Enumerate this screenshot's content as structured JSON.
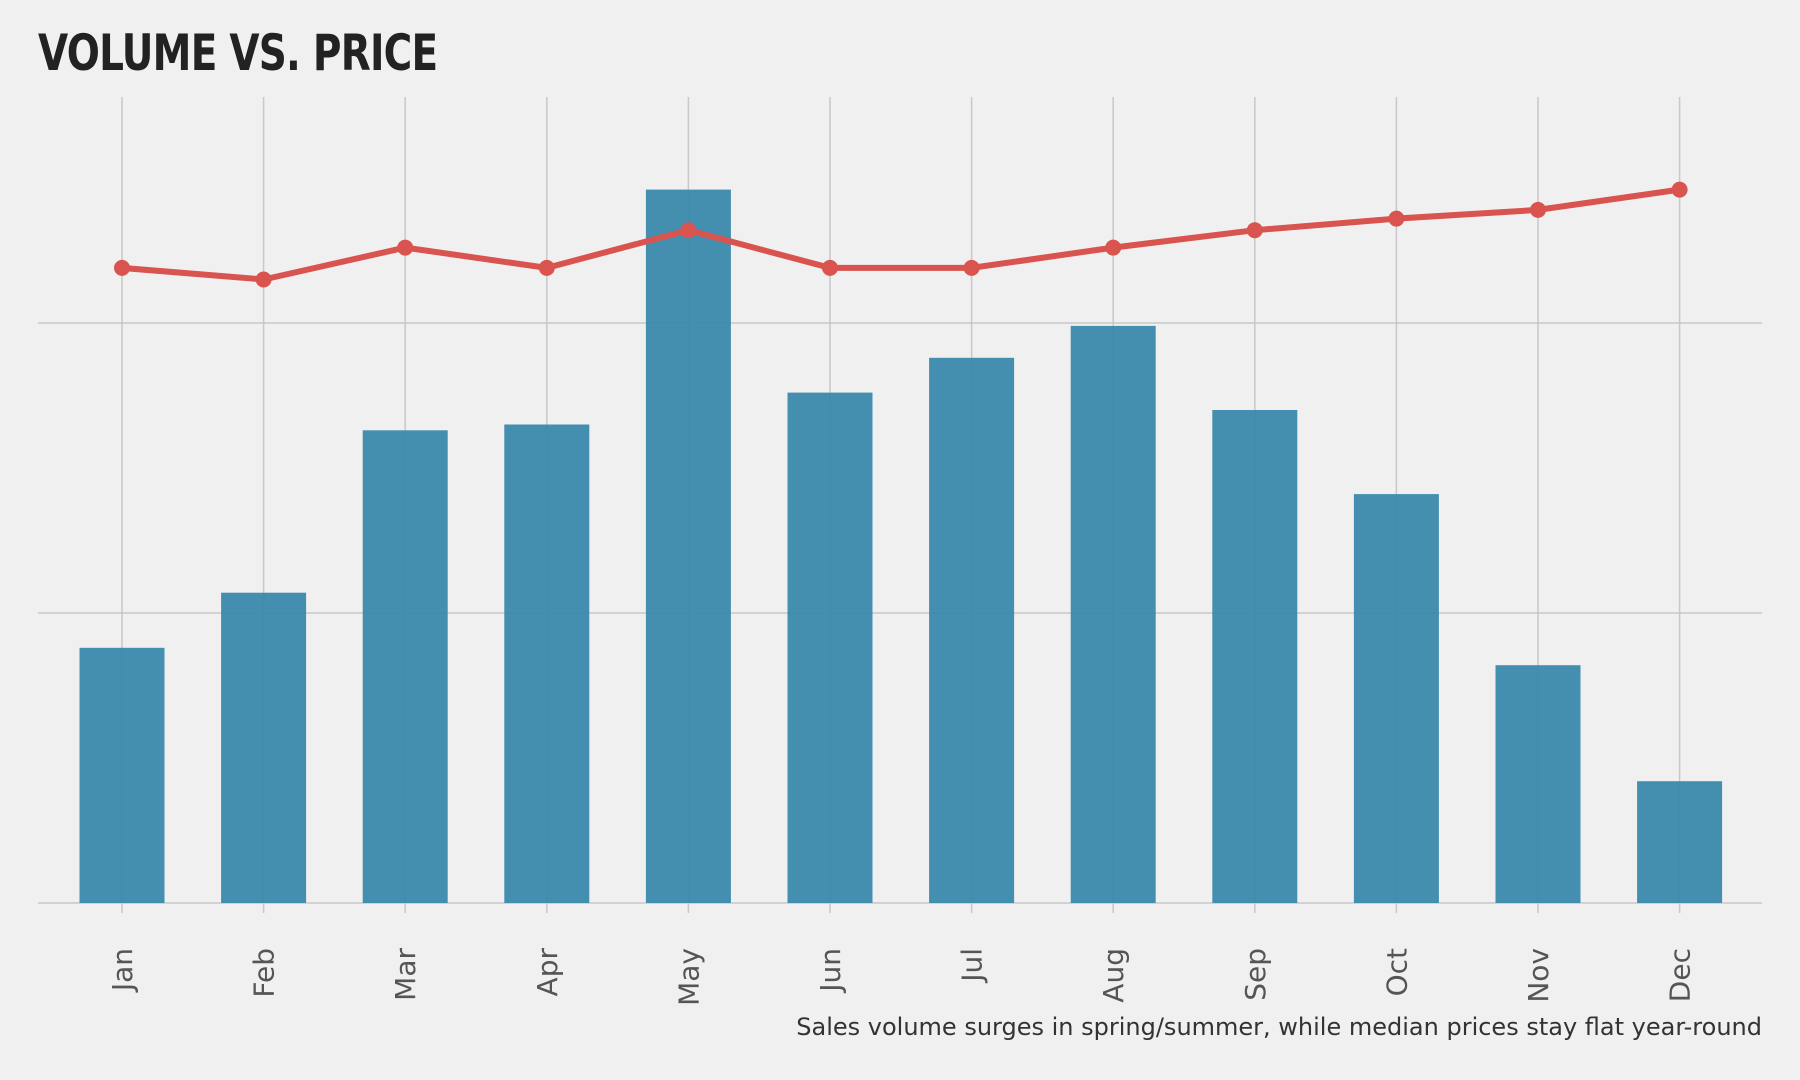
{
  "chart_data": {
    "type": "bar",
    "title": "VOLUME VS. PRICE",
    "caption": "Sales volume surges in spring/summer, while median prices stay flat year-round",
    "categories": [
      "Jan",
      "Feb",
      "Mar",
      "Apr",
      "May",
      "Jun",
      "Jul",
      "Aug",
      "Sep",
      "Oct",
      "Nov",
      "Dec"
    ],
    "series": [
      {
        "type": "bar",
        "values": [
          88,
          107,
          163,
          165,
          246,
          176,
          188,
          199,
          170,
          141,
          82,
          42
        ],
        "color": "#3a88ab"
      },
      {
        "type": "line",
        "values": [
          219,
          215,
          226,
          219,
          232,
          219,
          219,
          226,
          232,
          236,
          239,
          246
        ],
        "color": "#d9534f"
      }
    ],
    "ylim": [
      0,
      280
    ],
    "grid": true,
    "y_tick_values": [
      0,
      100,
      200
    ],
    "y_tick_labels_shown": false,
    "background": "#f0f0f0",
    "gridline_color": "#c8c8c8"
  }
}
